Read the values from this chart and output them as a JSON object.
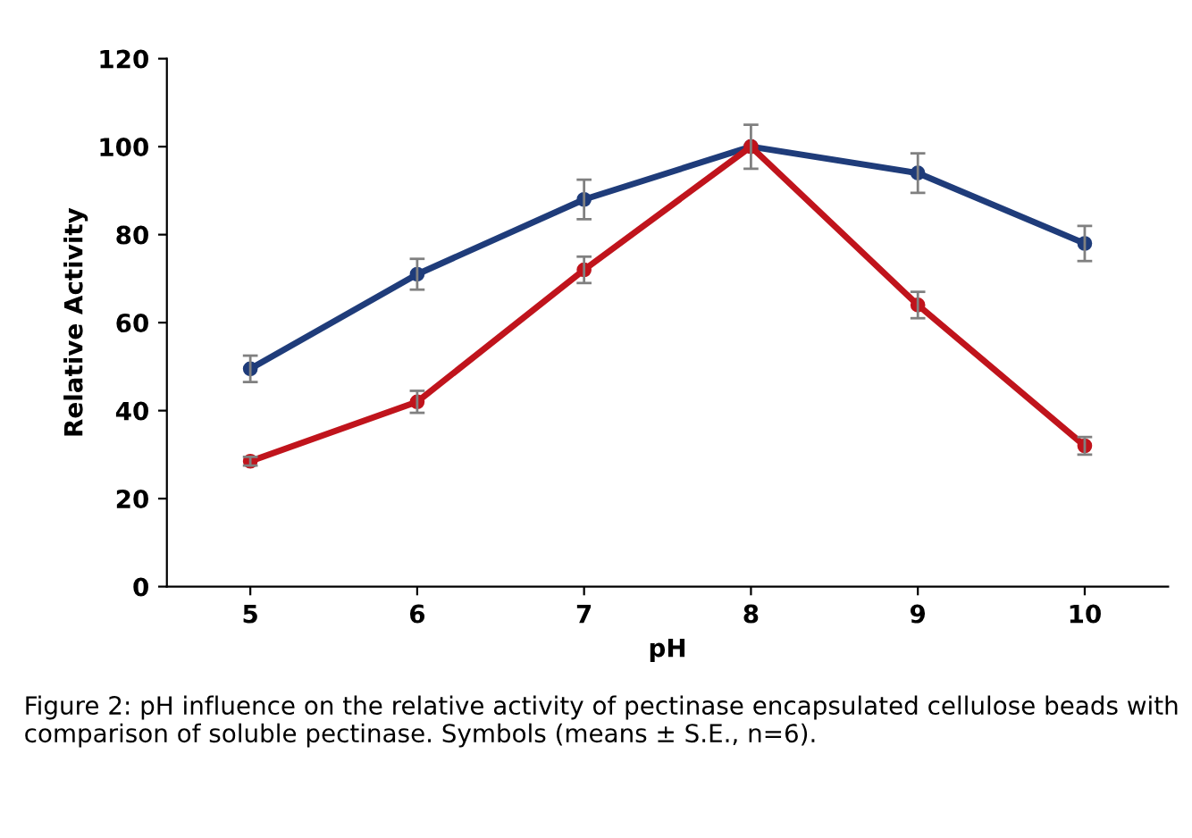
{
  "chart_data": {
    "type": "line",
    "xlabel": "pH",
    "ylabel": "Relative Activity",
    "categories": [
      "5",
      "6",
      "7",
      "8",
      "9",
      "10"
    ],
    "series": [
      {
        "color": "#1f3c7a",
        "values": [
          49.5,
          71,
          88,
          100,
          94,
          78
        ],
        "errors": [
          3,
          3.5,
          4.5,
          null,
          4.5,
          4
        ]
      },
      {
        "color": "#c0141c",
        "values": [
          28.5,
          42,
          72,
          100,
          64,
          32
        ],
        "errors": [
          1,
          2.5,
          3,
          5,
          3,
          2
        ]
      }
    ],
    "ylim": [
      0,
      120
    ],
    "yticks": [
      0,
      20,
      40,
      60,
      80,
      100,
      120
    ],
    "grid": false,
    "legend": false,
    "marker": "circle",
    "line_style": "solid",
    "annotations": [
      "Figure 2: pH influence on the relative activity of pectinase encapsulated cellulose beads with comparison of soluble pectinase. Symbols (means ± S.E., n=6)."
    ]
  }
}
